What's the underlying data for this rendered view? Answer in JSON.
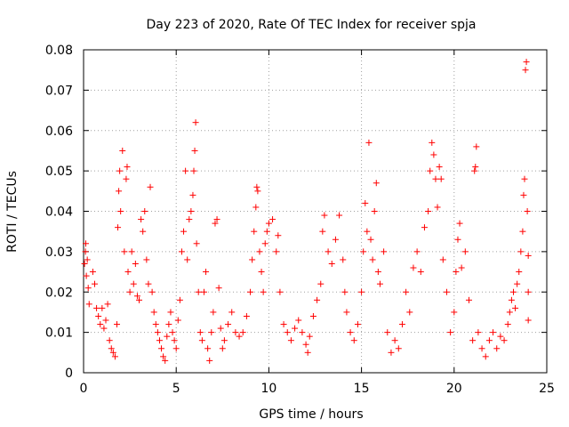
{
  "chart_data": {
    "type": "scatter",
    "title": "Day 223 of 2020, Rate Of TEC Index for receiver spja",
    "xlabel": "GPS time / hours",
    "ylabel": "ROTI / TECUs",
    "xlim": [
      0,
      25
    ],
    "ylim": [
      0,
      0.08
    ],
    "x_ticks": [
      0,
      5,
      10,
      15,
      20,
      25
    ],
    "y_ticks": [
      0,
      0.01,
      0.02,
      0.03,
      0.04,
      0.05,
      0.06,
      0.07,
      0.08
    ],
    "x_tick_labels": [
      "0",
      "5",
      "10",
      "15",
      "20",
      "25"
    ],
    "y_tick_labels": [
      "0",
      "0.01",
      "0.02",
      "0.03",
      "0.04",
      "0.05",
      "0.06",
      "0.07",
      "0.08"
    ],
    "grid": true,
    "marker": "+",
    "color": "#ff0000",
    "points": [
      [
        0.05,
        0.027
      ],
      [
        0.1,
        0.03
      ],
      [
        0.12,
        0.032
      ],
      [
        0.15,
        0.024
      ],
      [
        0.2,
        0.028
      ],
      [
        0.25,
        0.021
      ],
      [
        0.3,
        0.017
      ],
      [
        0.5,
        0.025
      ],
      [
        0.6,
        0.022
      ],
      [
        0.7,
        0.016
      ],
      [
        0.8,
        0.014
      ],
      [
        0.9,
        0.012
      ],
      [
        1.0,
        0.016
      ],
      [
        1.1,
        0.011
      ],
      [
        1.2,
        0.013
      ],
      [
        1.3,
        0.017
      ],
      [
        1.4,
        0.008
      ],
      [
        1.5,
        0.006
      ],
      [
        1.6,
        0.005
      ],
      [
        1.7,
        0.004
      ],
      [
        1.8,
        0.012
      ],
      [
        1.85,
        0.036
      ],
      [
        1.9,
        0.045
      ],
      [
        1.95,
        0.05
      ],
      [
        2.0,
        0.04
      ],
      [
        2.1,
        0.055
      ],
      [
        2.2,
        0.03
      ],
      [
        2.3,
        0.048
      ],
      [
        2.35,
        0.051
      ],
      [
        2.4,
        0.025
      ],
      [
        2.5,
        0.02
      ],
      [
        2.6,
        0.03
      ],
      [
        2.7,
        0.022
      ],
      [
        2.8,
        0.027
      ],
      [
        2.9,
        0.019
      ],
      [
        3.0,
        0.018
      ],
      [
        3.1,
        0.038
      ],
      [
        3.2,
        0.035
      ],
      [
        3.3,
        0.04
      ],
      [
        3.4,
        0.028
      ],
      [
        3.5,
        0.022
      ],
      [
        3.6,
        0.046
      ],
      [
        3.7,
        0.02
      ],
      [
        3.8,
        0.015
      ],
      [
        3.9,
        0.012
      ],
      [
        4.0,
        0.01
      ],
      [
        4.1,
        0.008
      ],
      [
        4.2,
        0.006
      ],
      [
        4.3,
        0.004
      ],
      [
        4.4,
        0.003
      ],
      [
        4.5,
        0.009
      ],
      [
        4.6,
        0.012
      ],
      [
        4.7,
        0.015
      ],
      [
        4.8,
        0.01
      ],
      [
        4.9,
        0.008
      ],
      [
        5.0,
        0.006
      ],
      [
        5.1,
        0.013
      ],
      [
        5.2,
        0.018
      ],
      [
        5.3,
        0.03
      ],
      [
        5.4,
        0.035
      ],
      [
        5.5,
        0.05
      ],
      [
        5.6,
        0.028
      ],
      [
        5.7,
        0.038
      ],
      [
        5.8,
        0.04
      ],
      [
        5.9,
        0.044
      ],
      [
        5.95,
        0.05
      ],
      [
        6.0,
        0.055
      ],
      [
        6.05,
        0.062
      ],
      [
        6.1,
        0.032
      ],
      [
        6.2,
        0.02
      ],
      [
        6.3,
        0.01
      ],
      [
        6.4,
        0.008
      ],
      [
        6.5,
        0.02
      ],
      [
        6.6,
        0.025
      ],
      [
        6.7,
        0.006
      ],
      [
        6.8,
        0.003
      ],
      [
        6.9,
        0.01
      ],
      [
        7.0,
        0.015
      ],
      [
        7.1,
        0.037
      ],
      [
        7.2,
        0.038
      ],
      [
        7.3,
        0.021
      ],
      [
        7.4,
        0.011
      ],
      [
        7.5,
        0.006
      ],
      [
        7.6,
        0.008
      ],
      [
        7.8,
        0.012
      ],
      [
        8.0,
        0.015
      ],
      [
        8.2,
        0.01
      ],
      [
        8.4,
        0.009
      ],
      [
        8.6,
        0.01
      ],
      [
        8.8,
        0.014
      ],
      [
        9.0,
        0.02
      ],
      [
        9.1,
        0.028
      ],
      [
        9.2,
        0.035
      ],
      [
        9.3,
        0.041
      ],
      [
        9.35,
        0.046
      ],
      [
        9.4,
        0.045
      ],
      [
        9.5,
        0.03
      ],
      [
        9.6,
        0.025
      ],
      [
        9.7,
        0.02
      ],
      [
        9.8,
        0.032
      ],
      [
        9.9,
        0.035
      ],
      [
        10.0,
        0.037
      ],
      [
        10.2,
        0.038
      ],
      [
        10.4,
        0.03
      ],
      [
        10.5,
        0.034
      ],
      [
        10.6,
        0.02
      ],
      [
        10.8,
        0.012
      ],
      [
        11.0,
        0.01
      ],
      [
        11.2,
        0.008
      ],
      [
        11.4,
        0.011
      ],
      [
        11.6,
        0.013
      ],
      [
        11.8,
        0.01
      ],
      [
        12.0,
        0.007
      ],
      [
        12.1,
        0.005
      ],
      [
        12.2,
        0.009
      ],
      [
        12.4,
        0.014
      ],
      [
        12.6,
        0.018
      ],
      [
        12.8,
        0.022
      ],
      [
        12.9,
        0.035
      ],
      [
        13.0,
        0.039
      ],
      [
        13.2,
        0.03
      ],
      [
        13.4,
        0.027
      ],
      [
        13.6,
        0.033
      ],
      [
        13.8,
        0.039
      ],
      [
        14.0,
        0.028
      ],
      [
        14.1,
        0.02
      ],
      [
        14.2,
        0.015
      ],
      [
        14.4,
        0.01
      ],
      [
        14.6,
        0.008
      ],
      [
        14.8,
        0.012
      ],
      [
        15.0,
        0.02
      ],
      [
        15.1,
        0.03
      ],
      [
        15.2,
        0.042
      ],
      [
        15.3,
        0.035
      ],
      [
        15.4,
        0.057
      ],
      [
        15.5,
        0.033
      ],
      [
        15.6,
        0.028
      ],
      [
        15.7,
        0.04
      ],
      [
        15.8,
        0.047
      ],
      [
        15.9,
        0.025
      ],
      [
        16.0,
        0.022
      ],
      [
        16.2,
        0.03
      ],
      [
        16.4,
        0.01
      ],
      [
        16.6,
        0.005
      ],
      [
        16.8,
        0.008
      ],
      [
        17.0,
        0.006
      ],
      [
        17.2,
        0.012
      ],
      [
        17.4,
        0.02
      ],
      [
        17.6,
        0.015
      ],
      [
        17.8,
        0.026
      ],
      [
        18.0,
        0.03
      ],
      [
        18.2,
        0.025
      ],
      [
        18.4,
        0.036
      ],
      [
        18.6,
        0.04
      ],
      [
        18.7,
        0.05
      ],
      [
        18.8,
        0.057
      ],
      [
        18.9,
        0.054
      ],
      [
        19.0,
        0.048
      ],
      [
        19.1,
        0.041
      ],
      [
        19.2,
        0.051
      ],
      [
        19.3,
        0.048
      ],
      [
        19.4,
        0.028
      ],
      [
        19.6,
        0.02
      ],
      [
        19.8,
        0.01
      ],
      [
        20.0,
        0.015
      ],
      [
        20.1,
        0.025
      ],
      [
        20.2,
        0.033
      ],
      [
        20.3,
        0.037
      ],
      [
        20.4,
        0.026
      ],
      [
        20.6,
        0.03
      ],
      [
        20.8,
        0.018
      ],
      [
        21.0,
        0.008
      ],
      [
        21.1,
        0.05
      ],
      [
        21.15,
        0.051
      ],
      [
        21.2,
        0.056
      ],
      [
        21.3,
        0.01
      ],
      [
        21.5,
        0.006
      ],
      [
        21.7,
        0.004
      ],
      [
        21.9,
        0.008
      ],
      [
        22.1,
        0.01
      ],
      [
        22.3,
        0.006
      ],
      [
        22.5,
        0.009
      ],
      [
        22.7,
        0.008
      ],
      [
        22.9,
        0.012
      ],
      [
        23.0,
        0.015
      ],
      [
        23.1,
        0.018
      ],
      [
        23.2,
        0.02
      ],
      [
        23.3,
        0.016
      ],
      [
        23.4,
        0.022
      ],
      [
        23.5,
        0.025
      ],
      [
        23.6,
        0.03
      ],
      [
        23.7,
        0.035
      ],
      [
        23.75,
        0.044
      ],
      [
        23.8,
        0.048
      ],
      [
        23.85,
        0.075
      ],
      [
        23.9,
        0.077
      ],
      [
        23.95,
        0.04
      ],
      [
        24.0,
        0.029
      ],
      [
        24.0,
        0.02
      ],
      [
        24.0,
        0.013
      ]
    ]
  }
}
